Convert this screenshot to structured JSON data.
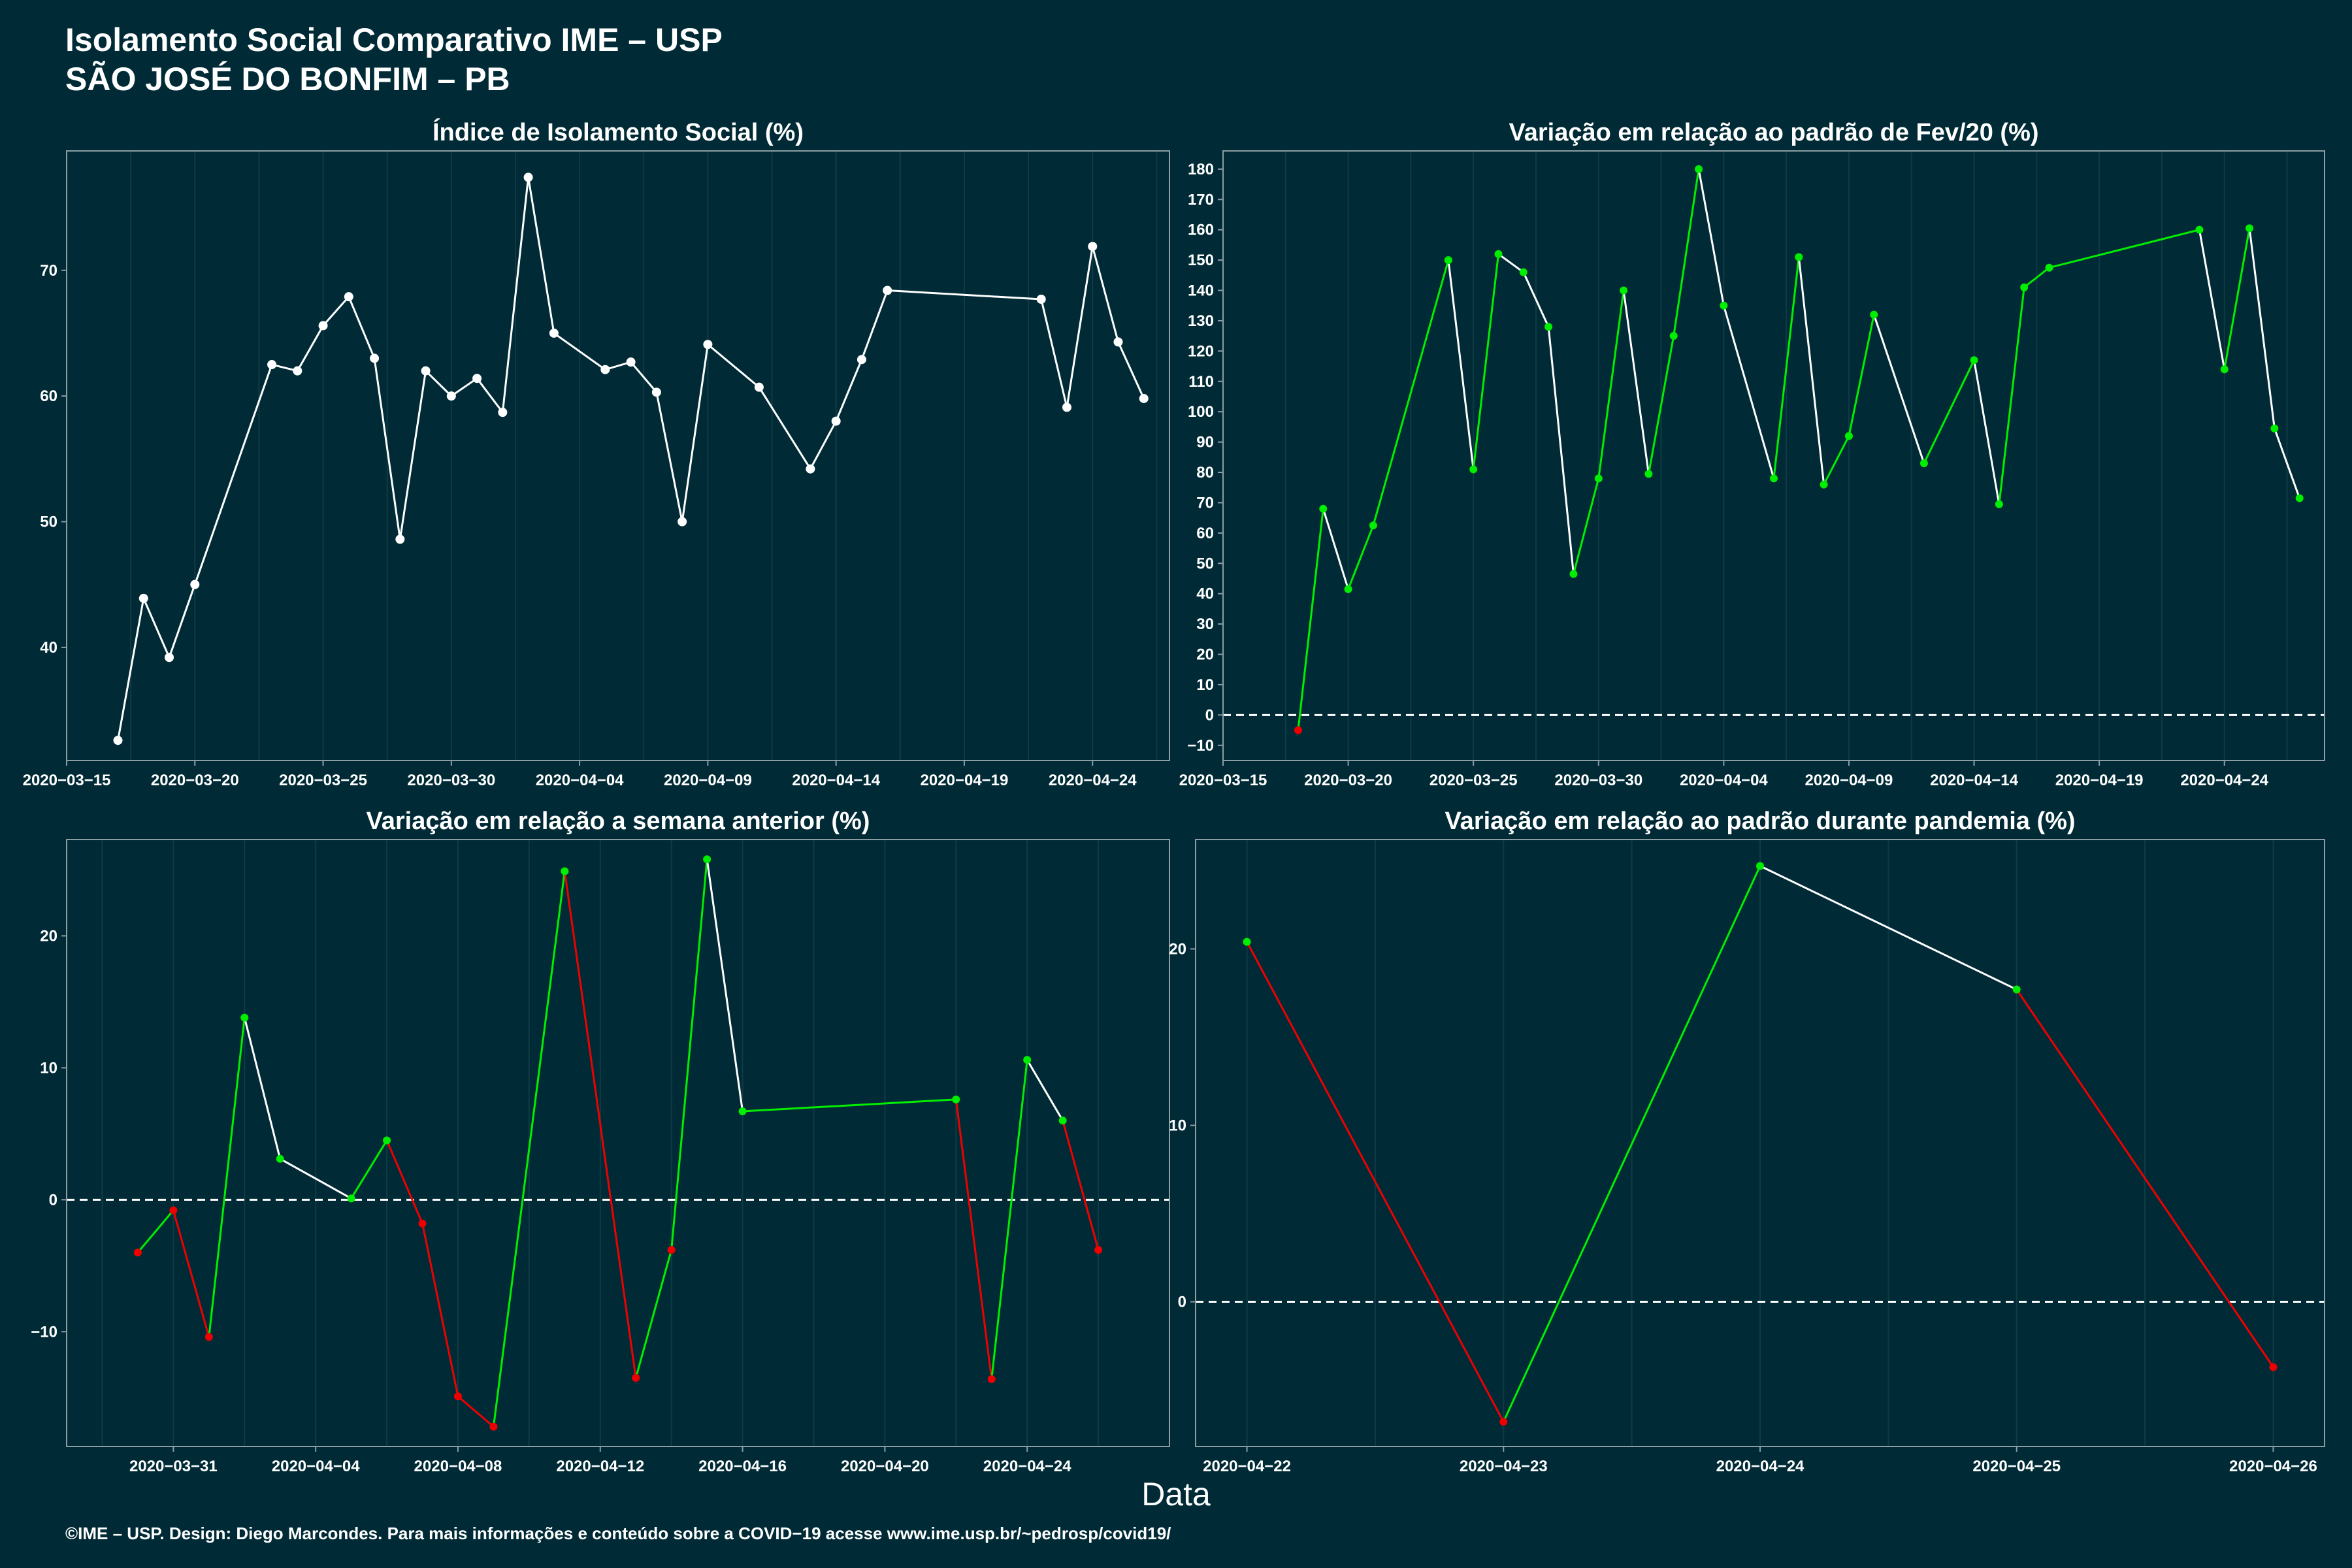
{
  "header": {
    "title": "Isolamento Social Comparativo IME – USP",
    "subtitle": "SÃO JOSÉ DO BONFIM – PB"
  },
  "xlabel": "Data",
  "footer": "©IME – USP. Design: Diego Marcondes. Para mais informações e conteúdo sobre a COVID−19 acesse www.ime.usp.br/~pedrosp/covid19/",
  "colors": {
    "background": "#002b36",
    "neutral": "#ffffff",
    "positive": "#00ee00",
    "negative": "#ee0000",
    "gridline": "#0f3b45"
  },
  "chart_data": [
    {
      "type": "line",
      "title": "Índice de Isolamento Social (%)",
      "x_type": "date",
      "xlim": [
        "2020-03-15",
        "2020-04-27"
      ],
      "ylim": [
        31,
        79.5
      ],
      "x_ticks": [
        "2020-03-15",
        "2020-03-20",
        "2020-03-25",
        "2020-03-30",
        "2020-04-04",
        "2020-04-09",
        "2020-04-14",
        "2020-04-19",
        "2020-04-24"
      ],
      "y_ticks": [
        40,
        50,
        60,
        70
      ],
      "zero_line": false,
      "grid": true,
      "points": [
        {
          "x": "2020-03-17",
          "y": 32.6
        },
        {
          "x": "2020-03-18",
          "y": 43.9
        },
        {
          "x": "2020-03-19",
          "y": 39.2
        },
        {
          "x": "2020-03-20",
          "y": 45.0
        },
        {
          "x": "2020-03-23",
          "y": 62.5
        },
        {
          "x": "2020-03-24",
          "y": 62.0
        },
        {
          "x": "2020-03-25",
          "y": 65.6
        },
        {
          "x": "2020-03-26",
          "y": 67.9
        },
        {
          "x": "2020-03-27",
          "y": 63.0
        },
        {
          "x": "2020-03-28",
          "y": 48.6
        },
        {
          "x": "2020-03-29",
          "y": 62.0
        },
        {
          "x": "2020-03-30",
          "y": 60.0
        },
        {
          "x": "2020-03-31",
          "y": 61.4
        },
        {
          "x": "2020-04-01",
          "y": 58.7
        },
        {
          "x": "2020-04-02",
          "y": 77.4
        },
        {
          "x": "2020-04-03",
          "y": 65.0
        },
        {
          "x": "2020-04-05",
          "y": 62.1
        },
        {
          "x": "2020-04-06",
          "y": 62.7
        },
        {
          "x": "2020-04-07",
          "y": 60.3
        },
        {
          "x": "2020-04-08",
          "y": 50.0
        },
        {
          "x": "2020-04-09",
          "y": 64.1
        },
        {
          "x": "2020-04-11",
          "y": 60.7
        },
        {
          "x": "2020-04-13",
          "y": 54.2
        },
        {
          "x": "2020-04-14",
          "y": 58.0
        },
        {
          "x": "2020-04-15",
          "y": 62.9
        },
        {
          "x": "2020-04-16",
          "y": 68.4
        },
        {
          "x": "2020-04-22",
          "y": 67.7
        },
        {
          "x": "2020-04-23",
          "y": 59.1
        },
        {
          "x": "2020-04-24",
          "y": 71.9
        },
        {
          "x": "2020-04-25",
          "y": 64.3
        },
        {
          "x": "2020-04-26",
          "y": 59.8
        }
      ]
    },
    {
      "type": "line",
      "title": "Variação em relação ao padrão de Fev/20 (%)",
      "x_type": "date",
      "xlim": [
        "2020-03-15",
        "2020-04-28"
      ],
      "ylim": [
        -15,
        186
      ],
      "x_ticks": [
        "2020-03-15",
        "2020-03-20",
        "2020-03-25",
        "2020-03-30",
        "2020-04-04",
        "2020-04-09",
        "2020-04-14",
        "2020-04-19",
        "2020-04-24"
      ],
      "y_ticks": [
        -10,
        0,
        10,
        20,
        30,
        40,
        50,
        60,
        70,
        80,
        90,
        100,
        110,
        120,
        130,
        140,
        150,
        160,
        170,
        180
      ],
      "zero_line": true,
      "grid": true,
      "points": [
        {
          "x": "2020-03-18",
          "y": -5
        },
        {
          "x": "2020-03-19",
          "y": 68
        },
        {
          "x": "2020-03-20",
          "y": 41.5
        },
        {
          "x": "2020-03-21",
          "y": 62.5
        },
        {
          "x": "2020-03-24",
          "y": 150
        },
        {
          "x": "2020-03-25",
          "y": 81
        },
        {
          "x": "2020-03-26",
          "y": 152
        },
        {
          "x": "2020-03-27",
          "y": 146
        },
        {
          "x": "2020-03-28",
          "y": 128
        },
        {
          "x": "2020-03-29",
          "y": 46.5
        },
        {
          "x": "2020-03-30",
          "y": 78
        },
        {
          "x": "2020-03-31",
          "y": 140
        },
        {
          "x": "2020-04-01",
          "y": 79.5
        },
        {
          "x": "2020-04-02",
          "y": 125
        },
        {
          "x": "2020-04-03",
          "y": 180
        },
        {
          "x": "2020-04-04",
          "y": 135
        },
        {
          "x": "2020-04-06",
          "y": 78
        },
        {
          "x": "2020-04-07",
          "y": 151
        },
        {
          "x": "2020-04-08",
          "y": 76
        },
        {
          "x": "2020-04-09",
          "y": 92
        },
        {
          "x": "2020-04-10",
          "y": 132
        },
        {
          "x": "2020-04-12",
          "y": 83
        },
        {
          "x": "2020-04-14",
          "y": 117
        },
        {
          "x": "2020-04-15",
          "y": 69.5
        },
        {
          "x": "2020-04-16",
          "y": 141
        },
        {
          "x": "2020-04-17",
          "y": 147.5
        },
        {
          "x": "2020-04-23",
          "y": 160
        },
        {
          "x": "2020-04-24",
          "y": 114
        },
        {
          "x": "2020-04-25",
          "y": 160.5
        },
        {
          "x": "2020-04-26",
          "y": 94.5
        },
        {
          "x": "2020-04-27",
          "y": 71.5
        }
      ]
    },
    {
      "type": "line",
      "title": "Variação em relação a semana anterior (%)",
      "x_type": "date",
      "xlim": [
        "2020-03-28",
        "2020-04-28"
      ],
      "ylim": [
        -18.7,
        27.3
      ],
      "x_ticks": [
        "2020-03-31",
        "2020-04-04",
        "2020-04-08",
        "2020-04-12",
        "2020-04-16",
        "2020-04-20",
        "2020-04-24"
      ],
      "y_ticks": [
        -10,
        0,
        10,
        20
      ],
      "zero_line": true,
      "grid": true,
      "points": [
        {
          "x": "2020-03-30",
          "y": -4.0
        },
        {
          "x": "2020-03-31",
          "y": -0.8
        },
        {
          "x": "2020-04-01",
          "y": -10.4
        },
        {
          "x": "2020-04-02",
          "y": 13.8
        },
        {
          "x": "2020-04-03",
          "y": 3.1
        },
        {
          "x": "2020-04-05",
          "y": 0.1
        },
        {
          "x": "2020-04-06",
          "y": 4.5
        },
        {
          "x": "2020-04-07",
          "y": -1.8
        },
        {
          "x": "2020-04-08",
          "y": -14.9
        },
        {
          "x": "2020-04-09",
          "y": -17.2
        },
        {
          "x": "2020-04-11",
          "y": 24.9
        },
        {
          "x": "2020-04-13",
          "y": -13.5
        },
        {
          "x": "2020-04-14",
          "y": -3.8
        },
        {
          "x": "2020-04-15",
          "y": 25.8
        },
        {
          "x": "2020-04-16",
          "y": 6.7
        },
        {
          "x": "2020-04-22",
          "y": 7.6
        },
        {
          "x": "2020-04-23",
          "y": -13.6
        },
        {
          "x": "2020-04-24",
          "y": 10.6
        },
        {
          "x": "2020-04-25",
          "y": 6.0
        },
        {
          "x": "2020-04-26",
          "y": -3.8
        }
      ]
    },
    {
      "type": "line",
      "title": "Variação em relação ao padrão durante pandemia (%)",
      "x_type": "date",
      "xlim": [
        "2020-04-21.8",
        "2020-04-26.2"
      ],
      "ylim": [
        -8.2,
        26.2
      ],
      "x_ticks": [
        "2020-04-22",
        "2020-04-23",
        "2020-04-24",
        "2020-04-25",
        "2020-04-26"
      ],
      "y_ticks": [
        0,
        10,
        20
      ],
      "zero_line": true,
      "grid": true,
      "points": [
        {
          "x": "2020-04-22",
          "y": 20.4
        },
        {
          "x": "2020-04-23",
          "y": -6.8
        },
        {
          "x": "2020-04-24",
          "y": 24.7
        },
        {
          "x": "2020-04-25",
          "y": 17.7
        },
        {
          "x": "2020-04-26",
          "y": -3.7
        }
      ]
    }
  ]
}
